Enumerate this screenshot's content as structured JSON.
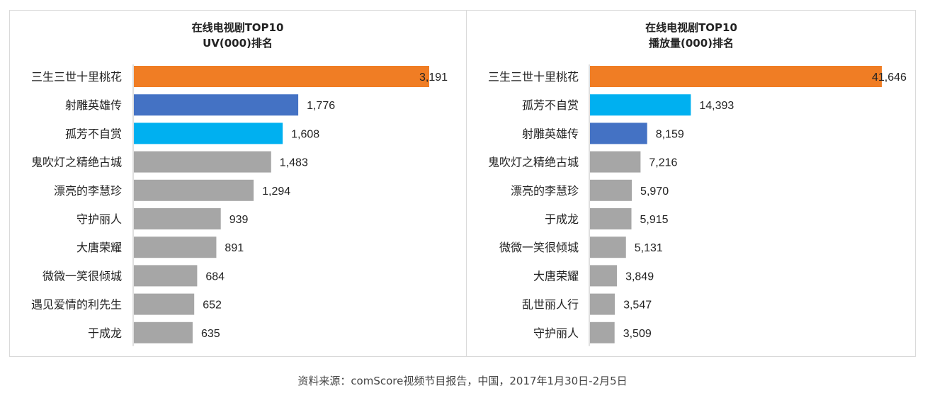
{
  "source_note": "资料来源：comScore视频节目报告，中国，2017年1月30日-2月5日",
  "colors": {
    "orange": "#f07d24",
    "blue": "#4472c4",
    "cyan": "#00b0f0",
    "gray": "#a6a6a6"
  },
  "chart_data": [
    {
      "type": "bar",
      "orientation": "horizontal",
      "title": "在线电视剧TOP10",
      "subtitle": "UV(000)排名",
      "categories": [
        "三生三世十里桃花",
        "射雕英雄传",
        "孤芳不自赏",
        "鬼吹灯之精绝古城",
        "漂亮的李慧珍",
        "守护丽人",
        "大唐荣耀",
        "微微一笑很倾城",
        "遇见爱情的利先生",
        "于成龙"
      ],
      "values": [
        3191,
        1776,
        1608,
        1483,
        1294,
        939,
        891,
        684,
        652,
        635
      ],
      "value_labels": [
        "3,191",
        "1,776",
        "1,608",
        "1,483",
        "1,294",
        "939",
        "891",
        "684",
        "652",
        "635"
      ],
      "bar_colors": [
        "#f07d24",
        "#4472c4",
        "#00b0f0",
        "#a6a6a6",
        "#a6a6a6",
        "#a6a6a6",
        "#a6a6a6",
        "#a6a6a6",
        "#a6a6a6",
        "#a6a6a6"
      ],
      "xlim": [
        0,
        3191
      ],
      "grid": false
    },
    {
      "type": "bar",
      "orientation": "horizontal",
      "title": "在线电视剧TOP10",
      "subtitle": "播放量(000)排名",
      "categories": [
        "三生三世十里桃花",
        "孤芳不自赏",
        "射雕英雄传",
        "鬼吹灯之精绝古城",
        "漂亮的李慧珍",
        "于成龙",
        "微微一笑很倾城",
        "大唐荣耀",
        "乱世丽人行",
        "守护丽人"
      ],
      "values": [
        41646,
        14393,
        8159,
        7216,
        5970,
        5915,
        5131,
        3849,
        3547,
        3509
      ],
      "value_labels": [
        "41,646",
        "14,393",
        "8,159",
        "7,216",
        "5,970",
        "5,915",
        "5,131",
        "3,849",
        "3,547",
        "3,509"
      ],
      "bar_colors": [
        "#f07d24",
        "#00b0f0",
        "#4472c4",
        "#a6a6a6",
        "#a6a6a6",
        "#a6a6a6",
        "#a6a6a6",
        "#a6a6a6",
        "#a6a6a6",
        "#a6a6a6"
      ],
      "xlim": [
        0,
        41646
      ],
      "grid": false
    }
  ]
}
